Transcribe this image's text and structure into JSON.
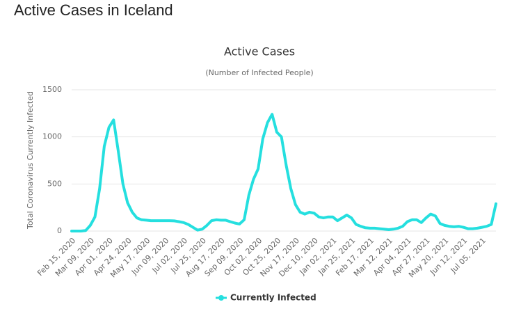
{
  "page_title": "Active Cases in Iceland",
  "chart_data": {
    "type": "line",
    "title": "Active Cases",
    "subtitle": "(Number of Infected People)",
    "y_label": "Total Coronavirus Currently Infected",
    "categories": [
      "Feb 15, 2020",
      null,
      null,
      null,
      "Mar 09, 2020",
      null,
      null,
      null,
      "Apr 01, 2020",
      null,
      null,
      null,
      "Apr 24, 2020",
      null,
      null,
      null,
      "May 17, 2020",
      null,
      null,
      null,
      "Jun 09, 2020",
      null,
      null,
      null,
      "Jul 02, 2020",
      null,
      null,
      null,
      "Jul 25, 2020",
      null,
      null,
      null,
      "Aug 17, 2020",
      null,
      null,
      null,
      "Sep 09, 2020",
      null,
      null,
      null,
      "Oct 02, 2020",
      null,
      null,
      null,
      "Oct 25, 2020",
      null,
      null,
      null,
      "Nov 17, 2020",
      null,
      null,
      null,
      "Dec 10, 2020",
      null,
      null,
      null,
      "Jan 02, 2021",
      null,
      null,
      null,
      "Jan 25, 2021",
      null,
      null,
      null,
      "Feb 17, 2021",
      null,
      null,
      null,
      "Mar 12, 2021",
      null,
      null,
      null,
      "Apr 04, 2021",
      null,
      null,
      null,
      "Apr 27, 2021",
      null,
      null,
      null,
      "May 20, 2021",
      null,
      null,
      null,
      "Jun 12, 2021",
      null,
      null,
      null,
      "Jul 05, 2021",
      null,
      null,
      null
    ],
    "series": [
      {
        "name": "Currently Infected",
        "color": "#25dfdf",
        "values": [
          0,
          0,
          0,
          5,
          60,
          150,
          450,
          900,
          1100,
          1180,
          850,
          500,
          300,
          200,
          140,
          120,
          115,
          110,
          110,
          110,
          110,
          110,
          108,
          100,
          90,
          70,
          40,
          10,
          20,
          60,
          110,
          120,
          115,
          115,
          100,
          85,
          75,
          120,
          380,
          550,
          660,
          980,
          1150,
          1240,
          1050,
          1000,
          700,
          450,
          280,
          200,
          180,
          200,
          190,
          150,
          140,
          150,
          150,
          110,
          140,
          170,
          140,
          70,
          50,
          35,
          30,
          30,
          25,
          20,
          15,
          20,
          30,
          50,
          100,
          120,
          120,
          90,
          140,
          180,
          160,
          80,
          60,
          50,
          45,
          50,
          40,
          25,
          25,
          30,
          40,
          50,
          70,
          290
        ]
      }
    ],
    "ylim": [
      0,
      1500
    ],
    "yticks": [
      0,
      500,
      1000,
      1500
    ],
    "grid": true,
    "legend": "bottom"
  }
}
